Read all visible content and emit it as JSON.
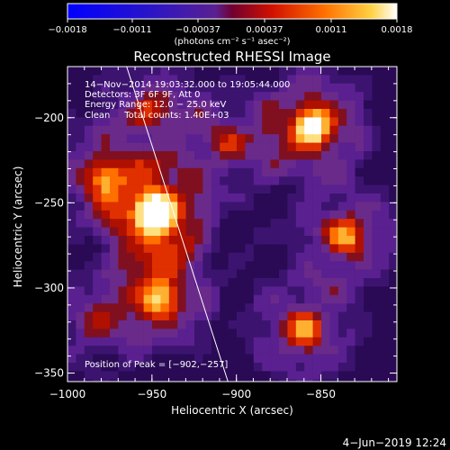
{
  "chart_data": {
    "type": "heatmap",
    "title": "Reconstructed RHESSI Image",
    "xlabel": "Heliocentric X (arcsec)",
    "ylabel": "Heliocentric Y (arcsec)",
    "xlim": [
      -1000,
      -805
    ],
    "ylim": [
      -355,
      -170
    ],
    "xticks": [
      -1000,
      -950,
      -900,
      -850
    ],
    "xtick_labels": [
      "−1000",
      "−950",
      "−900",
      "−850"
    ],
    "yticks": [
      -200,
      -250,
      -300,
      -350
    ],
    "ytick_labels": [
      "−200",
      "−250",
      "−300",
      "−350"
    ],
    "colorbar": {
      "range": [
        -0.0018,
        0.0018
      ],
      "tick_labels": [
        "−0.0018",
        "−0.0011",
        "−0.00037",
        "0.00037",
        "0.0011",
        "0.0018"
      ],
      "units_label": "(photons cm⁻² s⁻¹ asec⁻²)"
    },
    "info_lines": [
      "14−Nov−2014 19:03:32.000 to 19:05:44.000",
      "Detectors: 3F 6F 9F, Att 0",
      "Energy Range: 12.0 − 25.0 keV",
      "Clean     Total counts: 1.40E+03"
    ],
    "peak_label": "Position of Peak = [−902,−257]",
    "peak": {
      "x": -902,
      "y": -257
    },
    "sources": [
      {
        "x": -947,
        "y": -257,
        "amp": 1.0
      },
      {
        "x": -855,
        "y": -205,
        "amp": 0.85
      },
      {
        "x": -945,
        "y": -305,
        "amp": 0.7
      },
      {
        "x": -835,
        "y": -270,
        "amp": 0.6
      },
      {
        "x": -980,
        "y": -235,
        "amp": 0.55
      },
      {
        "x": -860,
        "y": -325,
        "amp": 0.6
      },
      {
        "x": -950,
        "y": -195,
        "amp": 0.45
      },
      {
        "x": -905,
        "y": -215,
        "amp": 0.4
      },
      {
        "x": -985,
        "y": -320,
        "amp": 0.35
      }
    ],
    "limb_line": [
      {
        "x": -965,
        "y": -170
      },
      {
        "x": -905,
        "y": -355
      }
    ]
  },
  "footer_date": "4−Jun−2019 12:24",
  "colors": {
    "background": "#000000",
    "axis": "#ffffff",
    "colormap": [
      "#0000ff",
      "#3300c8",
      "#5a1aa0",
      "#6a2a8a",
      "#a01010",
      "#e03000",
      "#ff8000",
      "#ffd040",
      "#ffffff"
    ]
  }
}
